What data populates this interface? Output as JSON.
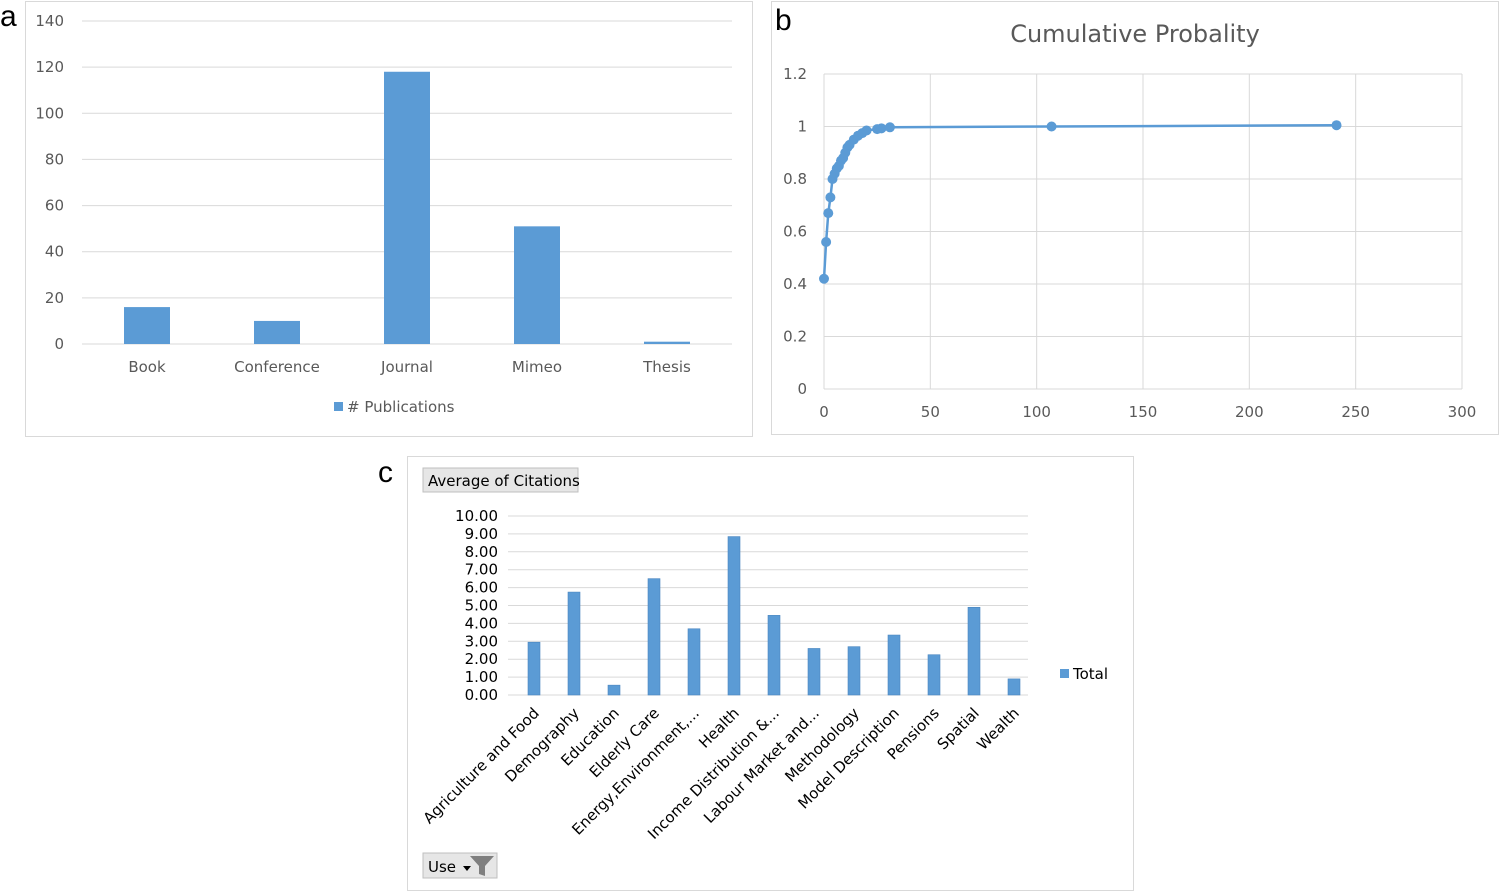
{
  "panels": {
    "a": "a",
    "b": "b",
    "c": "c"
  },
  "chart_data": [
    {
      "id": "a",
      "type": "bar",
      "categories": [
        "Book",
        "Conference",
        "Journal",
        "Mimeo",
        "Thesis"
      ],
      "series": [
        {
          "name": "# Publications",
          "values": [
            16,
            10,
            118,
            51,
            1
          ]
        }
      ],
      "ylim": [
        0,
        140
      ],
      "yticks": [
        0,
        20,
        40,
        60,
        80,
        100,
        120,
        140
      ],
      "grid": true,
      "legend": "bottom",
      "color": "#5b9bd5"
    },
    {
      "id": "b",
      "type": "line",
      "title": "Cumulative Probality",
      "x": [
        0,
        1,
        2,
        3,
        4,
        5,
        6,
        7,
        8,
        9,
        10,
        11,
        12,
        14,
        16,
        18,
        20,
        25,
        27,
        31,
        107,
        241
      ],
      "y": [
        0.42,
        0.56,
        0.67,
        0.73,
        0.8,
        0.82,
        0.84,
        0.85,
        0.87,
        0.88,
        0.9,
        0.92,
        0.93,
        0.95,
        0.965,
        0.975,
        0.985,
        0.99,
        0.993,
        0.997,
        1.0,
        1.005
      ],
      "xlim": [
        0,
        300
      ],
      "ylim": [
        0,
        1.2
      ],
      "xticks": [
        0,
        50,
        100,
        150,
        200,
        250,
        300
      ],
      "yticks": [
        "0",
        "0.2",
        "0.4",
        "0.6",
        "0.8",
        "1",
        "1.2"
      ],
      "grid": true,
      "color": "#5b9bd5"
    },
    {
      "id": "c",
      "type": "bar",
      "pivot_header": "Average of Citations",
      "filter_label": "Use",
      "categories": [
        "Agriculture and Food",
        "Demography",
        "Education",
        "Elderly Care",
        "Energy,Environment,...",
        "Health",
        "Income Distribution &...",
        "Labour Market and...",
        "Methodology",
        "Model Description",
        "Pensions",
        "Spatial",
        "Wealth"
      ],
      "series": [
        {
          "name": "Total",
          "values": [
            2.95,
            5.75,
            0.55,
            6.5,
            3.7,
            8.85,
            4.45,
            2.6,
            2.7,
            3.35,
            2.25,
            4.9,
            0.9
          ]
        }
      ],
      "ylim": [
        0,
        10
      ],
      "yticks": [
        "0.00",
        "1.00",
        "2.00",
        "3.00",
        "4.00",
        "5.00",
        "6.00",
        "7.00",
        "8.00",
        "9.00",
        "10.00"
      ],
      "grid": true,
      "legend": "right",
      "color": "#5b9bd5"
    }
  ]
}
